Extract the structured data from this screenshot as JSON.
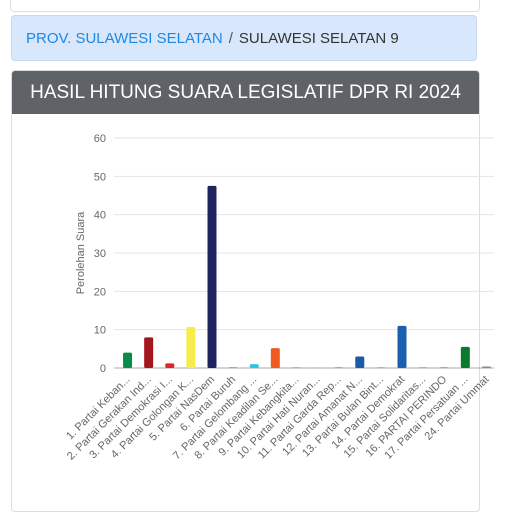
{
  "breadcrumb": {
    "province": "PROV. SULAWESI SELATAN",
    "separator": "/",
    "current": "SULAWESI SELATAN 9"
  },
  "chart_data": {
    "type": "bar",
    "title": "HASIL HITUNG SUARA LEGISLATIF DPR RI 2024",
    "y_label": "Perolehan Suara",
    "categories": [
      "1. Partai Keban...",
      "2. Partai Gerakan Ind...",
      "3. Partai Demokrasi I...",
      "4. Partai Golongan K...",
      "5. Partai NasDem",
      "6. Partai Buruh",
      "7. Partai Gelombang ...",
      "8. Partai Keadilan Se...",
      "9. Partai Kebangkita...",
      "10. Partai Hati Nuran...",
      "11. Partai Garda Rep...",
      "12. Partai Amanat N...",
      "13. Partai Bulan Bint...",
      "14. Partai Demokrat",
      "15. Partai Solidaritas...",
      "16. PARTAI PERINDO",
      "17. Partai Persatuan ...",
      "24. Partai Ummat"
    ],
    "values": [
      4,
      8,
      1.2,
      10.7,
      47.5,
      0.2,
      1,
      5.2,
      0.1,
      0.1,
      0.1,
      3,
      0.1,
      11,
      0.1,
      0.1,
      5.5,
      0.4
    ],
    "colors": [
      "#0b8a4a",
      "#a3161d",
      "#e02329",
      "#f6ec4a",
      "#1f2460",
      "#f26b21",
      "#2fc4e0",
      "#f05a22",
      "#0a7d3e",
      "#f58220",
      "#7a2b1d",
      "#1c5aa8",
      "#0d7a3b",
      "#1b5fae",
      "#e6007e",
      "#1b3d8f",
      "#0a7a2f",
      "#8a8a8a"
    ],
    "ylim": [
      0,
      60
    ],
    "yticks": [
      0,
      10,
      20,
      30,
      40,
      50,
      60
    ],
    "grid": true
  }
}
